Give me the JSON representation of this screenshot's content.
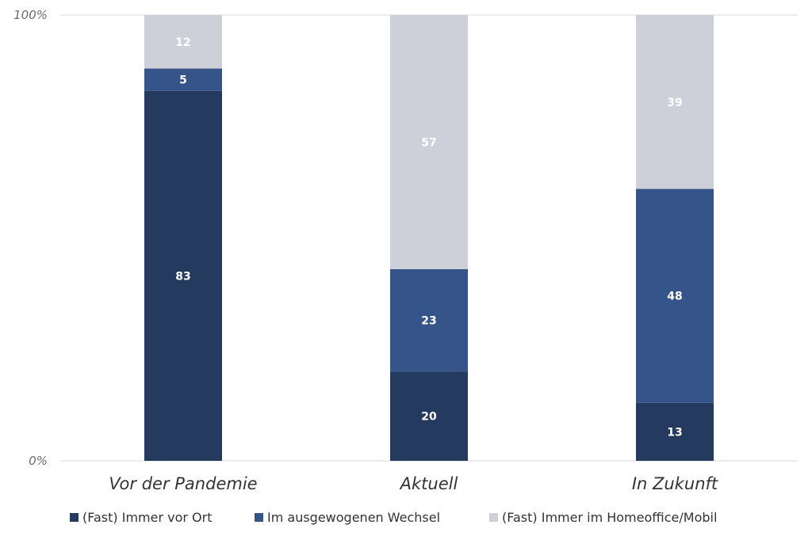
{
  "chart_data": {
    "type": "bar",
    "stacked": true,
    "categories": [
      "Vor der Pandemie",
      "Aktuell",
      "In Zukunft"
    ],
    "series": [
      {
        "name": "(Fast) Immer vor Ort",
        "color": "#243a5e",
        "values": [
          83,
          20,
          13
        ]
      },
      {
        "name": "Im ausgewogenen Wechsel",
        "color": "#34548a",
        "values": [
          5,
          23,
          48
        ]
      },
      {
        "name": "(Fast) Immer im Homeoffice/Mobil",
        "color": "#cdd0d9",
        "values": [
          12,
          57,
          39
        ]
      }
    ],
    "yticks": [
      "0%",
      "100%"
    ],
    "ylim": [
      0,
      100
    ],
    "grid": false,
    "legend_position": "bottom",
    "data_labels": true
  }
}
